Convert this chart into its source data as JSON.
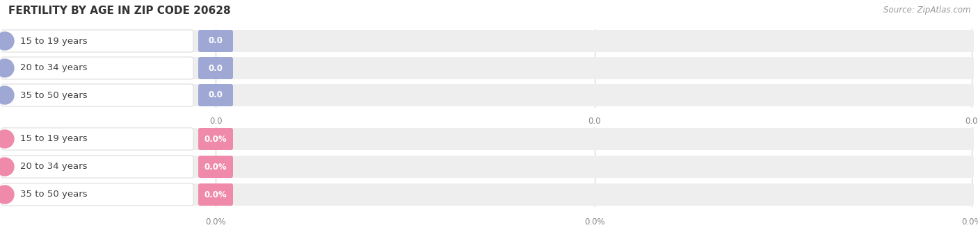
{
  "title": "FERTILITY BY AGE IN ZIP CODE 20628",
  "source": "Source: ZipAtlas.com",
  "top_section": {
    "categories": [
      "15 to 19 years",
      "20 to 34 years",
      "35 to 50 years"
    ],
    "values": [
      0.0,
      0.0,
      0.0
    ],
    "bar_color": "#9fa8d4",
    "track_color": "#eeeeee",
    "value_format": "0.0",
    "tick_labels": [
      "0.0",
      "0.0",
      "0.0"
    ]
  },
  "bottom_section": {
    "categories": [
      "15 to 19 years",
      "20 to 34 years",
      "35 to 50 years"
    ],
    "values": [
      0.0,
      0.0,
      0.0
    ],
    "bar_color": "#f08aaa",
    "track_color": "#eeeeee",
    "value_format": "0.0%",
    "tick_labels": [
      "0.0%",
      "0.0%",
      "0.0%"
    ]
  },
  "bg_color": "#ffffff",
  "title_fontsize": 11,
  "source_fontsize": 8.5,
  "label_fontsize": 9.5,
  "value_fontsize": 8.5,
  "tick_fontsize": 8.5,
  "label_color": "#444444",
  "tick_color": "#888888",
  "grid_color": "#cccccc",
  "track_bg_color": "#f2f2f2",
  "pill_border_color": "#dddddd"
}
